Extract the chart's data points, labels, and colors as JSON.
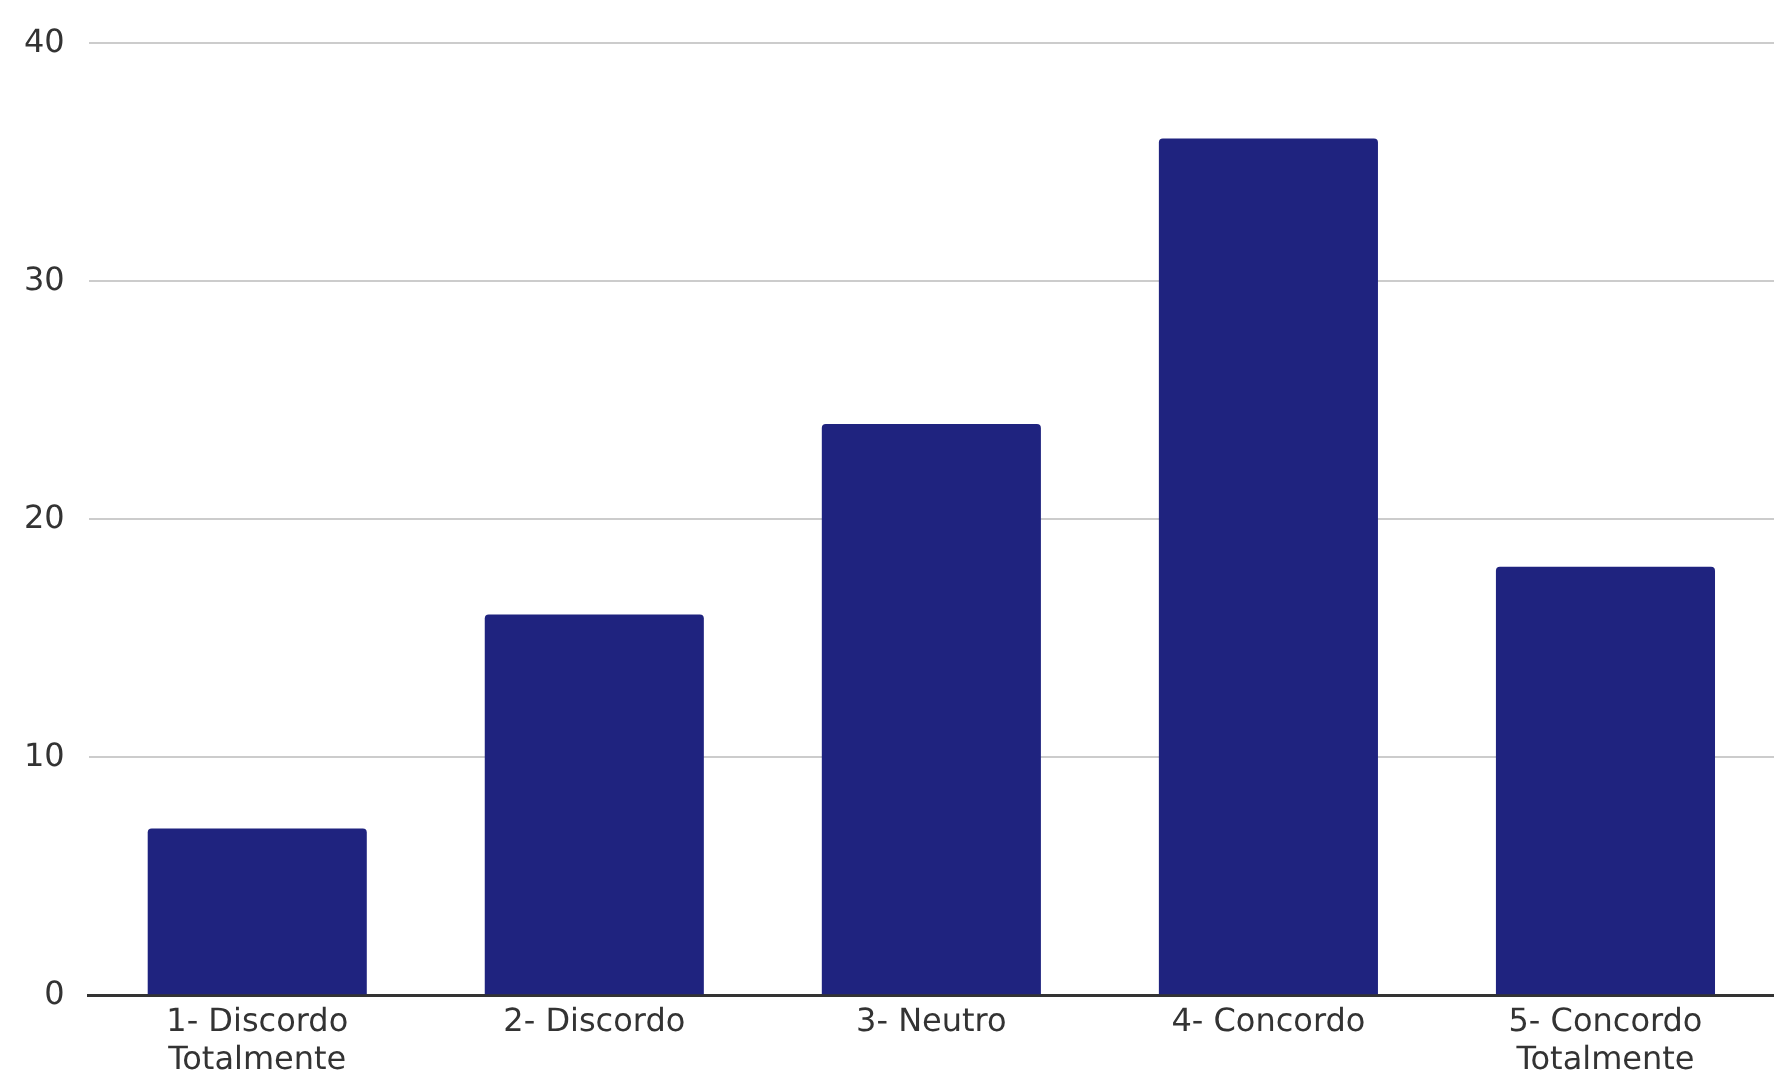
{
  "chart_data": {
    "type": "bar",
    "categories": [
      "1- Discordo Totalmente",
      "2- Discordo",
      "3- Neutro",
      "4- Concordo",
      "5- Concordo Totalmente"
    ],
    "values": [
      7,
      16,
      24,
      36,
      18
    ],
    "color": "#1f237f",
    "ylim": [
      0,
      40
    ],
    "yticks": [
      0,
      10,
      20,
      30,
      40
    ],
    "grid": "y"
  }
}
